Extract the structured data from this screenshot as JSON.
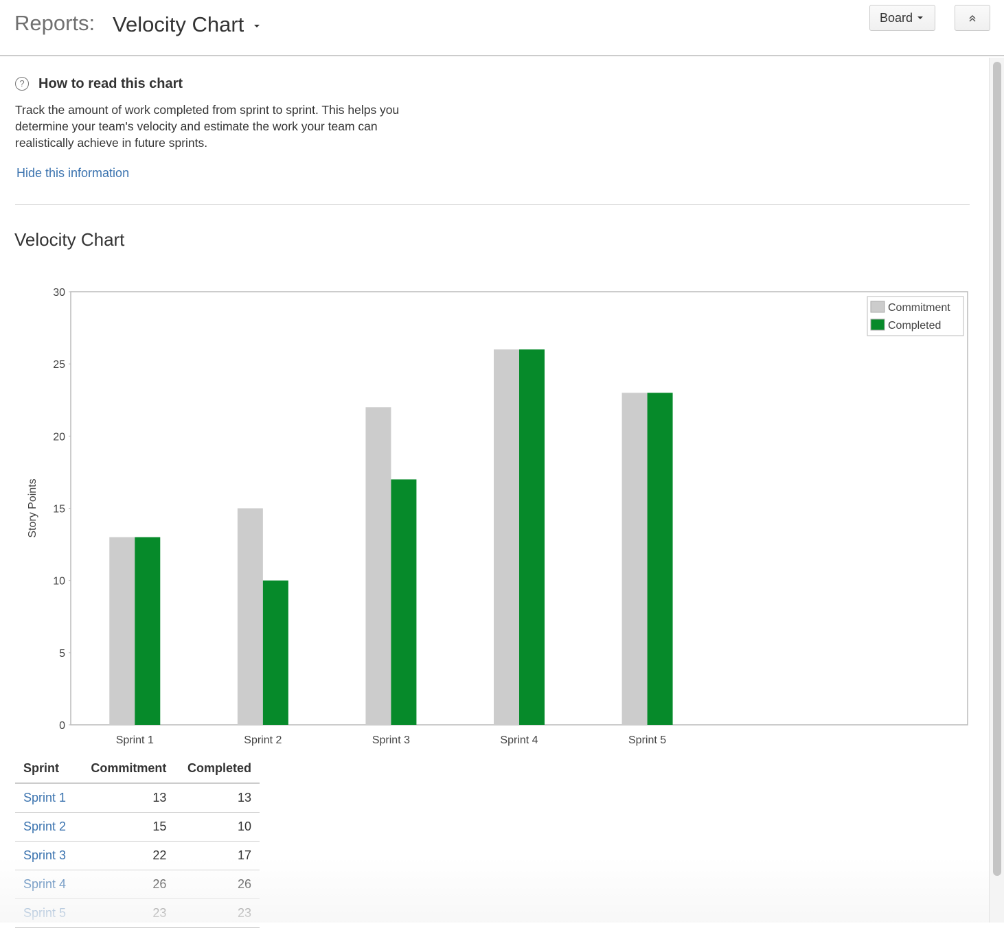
{
  "header": {
    "section": "Reports:",
    "title": "Velocity Chart",
    "board_button": "Board"
  },
  "info": {
    "heading": "How to read this chart",
    "text": "Track the amount of work completed from sprint to sprint. This helps you determine your team's velocity and estimate the work your team can realistically achieve in future sprints.",
    "link": "Hide this information"
  },
  "chart_data": {
    "type": "bar",
    "title": "Velocity Chart",
    "y_label": "Story Points",
    "categories": [
      "Sprint 1",
      "Sprint 2",
      "Sprint 3",
      "Sprint 4",
      "Sprint 5"
    ],
    "series": [
      {
        "name": "Commitment",
        "color": "#cccccc",
        "values": [
          13,
          15,
          22,
          26,
          23
        ]
      },
      {
        "name": "Completed",
        "color": "#068a2a",
        "values": [
          13,
          10,
          17,
          26,
          23
        ]
      }
    ],
    "ylim": [
      0,
      30
    ],
    "yticks": [
      0,
      5,
      10,
      15,
      20,
      25,
      30
    ],
    "legend": "top-right"
  },
  "table": {
    "columns": [
      "Sprint",
      "Commitment",
      "Completed"
    ],
    "rows": [
      [
        "Sprint 1",
        13,
        13
      ],
      [
        "Sprint 2",
        15,
        10
      ],
      [
        "Sprint 3",
        22,
        17
      ],
      [
        "Sprint 4",
        26,
        26
      ],
      [
        "Sprint 5",
        23,
        23
      ]
    ]
  }
}
